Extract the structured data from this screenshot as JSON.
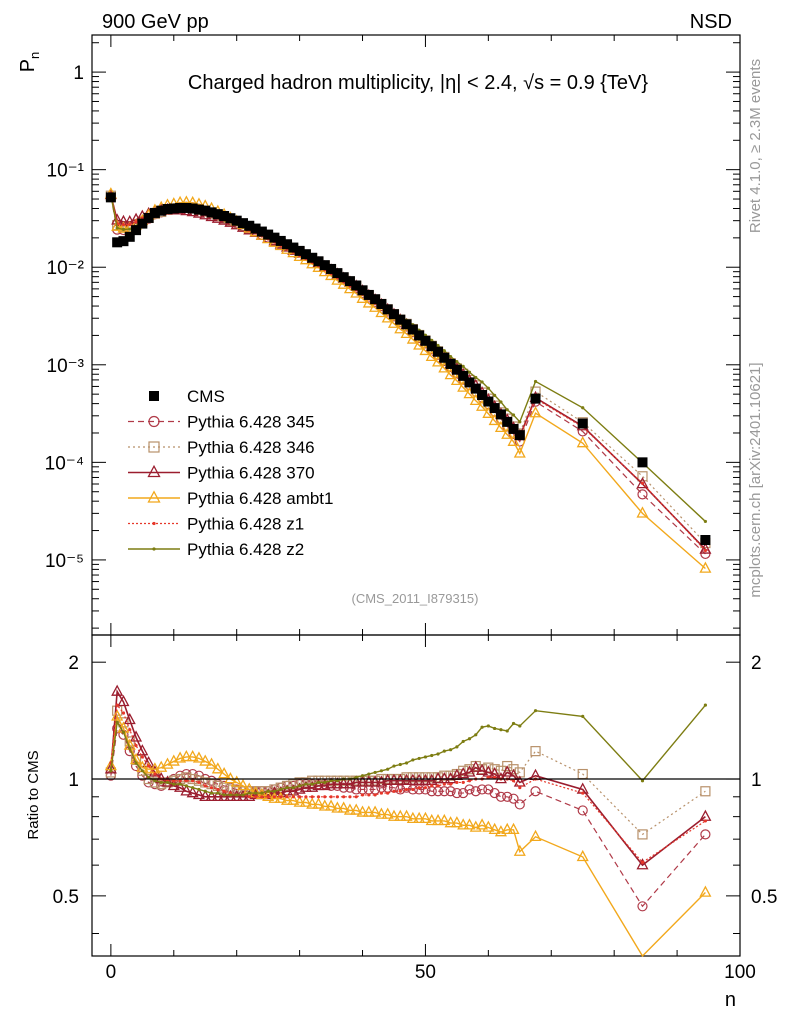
{
  "header": {
    "left": "900 GeV pp",
    "right": "NSD"
  },
  "side_labels": {
    "rivet": "Rivet 4.1.0, ≥ 2.3M events",
    "mcplots": "mcplots.cern.ch [arXiv:2401.10621]"
  },
  "chart_data": {
    "type": "line",
    "title": "Charged hadron multiplicity, |η| < 2.4, √s = 0.9 {TeV}",
    "analysis_tag": "(CMS_2011_I879315)",
    "xlabel": "n",
    "ylabel": "P_n",
    "ratio_ylabel": "Ratio to CMS",
    "xlim": [
      -3,
      100
    ],
    "ylim": [
      1.7e-06,
      2.4
    ],
    "ratio_ylim": [
      0.35,
      2.35
    ],
    "x_tick_labels": [
      "0",
      "50",
      "100"
    ],
    "y_tick_labels": [
      "1",
      "10⁻¹",
      "10⁻²",
      "10⁻³",
      "10⁻⁴",
      "10⁻⁵"
    ],
    "ratio_tick_labels": [
      "0.5",
      "1",
      "2"
    ],
    "legend_position": "bottom-left",
    "x": [
      0,
      1,
      2,
      3,
      4,
      5,
      6,
      7,
      8,
      9,
      10,
      11,
      12,
      13,
      14,
      15,
      16,
      17,
      18,
      19,
      20,
      21,
      22,
      23,
      24,
      25,
      26,
      27,
      28,
      29,
      30,
      31,
      32,
      33,
      34,
      35,
      36,
      37,
      38,
      39,
      40,
      41,
      42,
      43,
      44,
      45,
      46,
      47,
      48,
      49,
      50,
      51,
      52,
      53,
      54,
      55,
      56,
      57,
      58,
      59,
      60,
      61,
      62,
      63,
      64,
      65,
      67.5,
      75,
      84.5,
      94.5
    ],
    "data": {
      "name": "CMS",
      "values": [
        0.052,
        0.018,
        0.0185,
        0.0205,
        0.024,
        0.028,
        0.032,
        0.036,
        0.038,
        0.0395,
        0.04,
        0.0405,
        0.0405,
        0.04,
        0.039,
        0.038,
        0.0365,
        0.035,
        0.0335,
        0.0318,
        0.03,
        0.0283,
        0.0266,
        0.0249,
        0.0232,
        0.0216,
        0.0201,
        0.0186,
        0.0172,
        0.0159,
        0.0147,
        0.0136,
        0.0125,
        0.0115,
        0.0105,
        0.0096,
        0.0087,
        0.0079,
        0.0072,
        0.0065,
        0.0058,
        0.0052,
        0.0047,
        0.0042,
        0.0037,
        0.0033,
        0.0029,
        0.0026,
        0.0023,
        0.002,
        0.00176,
        0.00155,
        0.00136,
        0.00118,
        0.00102,
        0.00089,
        0.00077,
        0.00066,
        0.00057,
        0.00049,
        0.00042,
        0.00036,
        0.00031,
        0.00026,
        0.00022,
        0.00019,
        0.00045,
        0.00025,
        0.0001,
        1.6e-05
      ]
    },
    "series": [
      {
        "name": "Pythia 6.428 345",
        "color": "#b03a48",
        "ratio": [
          1.02,
          1.35,
          1.3,
          1.18,
          1.08,
          1.02,
          0.98,
          0.97,
          0.96,
          0.98,
          1.0,
          1.02,
          1.03,
          1.03,
          1.02,
          1.0,
          0.99,
          0.97,
          0.96,
          0.95,
          0.94,
          0.93,
          0.93,
          0.93,
          0.93,
          0.93,
          0.94,
          0.95,
          0.96,
          0.96,
          0.97,
          0.97,
          0.97,
          0.97,
          0.97,
          0.96,
          0.96,
          0.95,
          0.95,
          0.94,
          0.94,
          0.94,
          0.94,
          0.95,
          0.95,
          0.95,
          0.94,
          0.95,
          0.94,
          0.94,
          0.94,
          0.93,
          0.93,
          0.93,
          0.93,
          0.92,
          0.92,
          0.94,
          0.93,
          0.94,
          0.94,
          0.92,
          0.9,
          0.9,
          0.89,
          0.86,
          0.93,
          0.83,
          0.47,
          0.72
        ]
      },
      {
        "name": "Pythia 6.428 346",
        "color": "#b8916a",
        "ratio": [
          1.04,
          1.5,
          1.4,
          1.25,
          1.12,
          1.05,
          1.0,
          0.98,
          0.97,
          0.98,
          0.99,
          1.0,
          1.01,
          1.0,
          0.99,
          0.98,
          0.97,
          0.96,
          0.95,
          0.94,
          0.93,
          0.93,
          0.93,
          0.93,
          0.93,
          0.93,
          0.94,
          0.95,
          0.96,
          0.97,
          0.98,
          0.98,
          0.99,
          0.99,
          0.99,
          0.99,
          0.99,
          0.99,
          0.99,
          0.99,
          0.99,
          0.99,
          0.99,
          1.0,
          1.0,
          1.0,
          1.0,
          1.01,
          1.01,
          1.01,
          1.01,
          1.01,
          1.01,
          1.02,
          1.02,
          1.03,
          1.05,
          1.06,
          1.08,
          1.06,
          1.07,
          1.06,
          1.05,
          1.08,
          1.06,
          1.04,
          1.18,
          1.03,
          0.72,
          0.93
        ]
      },
      {
        "name": "Pythia 6.428 370",
        "color": "#9b1d2e",
        "ratio": [
          1.06,
          1.68,
          1.58,
          1.42,
          1.28,
          1.18,
          1.1,
          1.04,
          1.0,
          0.98,
          0.96,
          0.95,
          0.93,
          0.92,
          0.91,
          0.9,
          0.9,
          0.9,
          0.9,
          0.9,
          0.9,
          0.9,
          0.9,
          0.91,
          0.91,
          0.91,
          0.92,
          0.92,
          0.93,
          0.93,
          0.94,
          0.95,
          0.95,
          0.96,
          0.96,
          0.97,
          0.97,
          0.97,
          0.97,
          0.98,
          0.98,
          0.98,
          0.98,
          0.98,
          0.99,
          0.99,
          0.99,
          0.99,
          0.99,
          0.99,
          0.99,
          0.99,
          1.0,
          1.0,
          1.0,
          1.02,
          1.03,
          1.04,
          1.07,
          1.05,
          1.04,
          1.03,
          1.0,
          1.04,
          1.02,
          0.98,
          1.02,
          0.94,
          0.6,
          0.8
        ]
      },
      {
        "name": "Pythia 6.428 ambt1",
        "color": "#f2a81c",
        "ratio": [
          1.08,
          1.45,
          1.35,
          1.22,
          1.12,
          1.07,
          1.06,
          1.06,
          1.07,
          1.09,
          1.11,
          1.13,
          1.14,
          1.14,
          1.13,
          1.11,
          1.09,
          1.06,
          1.03,
          1.0,
          0.98,
          0.96,
          0.94,
          0.92,
          0.91,
          0.9,
          0.89,
          0.89,
          0.88,
          0.88,
          0.87,
          0.87,
          0.86,
          0.86,
          0.85,
          0.85,
          0.84,
          0.84,
          0.83,
          0.83,
          0.82,
          0.82,
          0.82,
          0.81,
          0.81,
          0.8,
          0.8,
          0.8,
          0.79,
          0.79,
          0.79,
          0.78,
          0.78,
          0.78,
          0.77,
          0.77,
          0.76,
          0.76,
          0.75,
          0.76,
          0.75,
          0.74,
          0.73,
          0.74,
          0.74,
          0.65,
          0.71,
          0.63,
          0.3,
          0.51
        ]
      },
      {
        "name": "Pythia 6.428 z1",
        "color": "#e6372a",
        "ratio": [
          1.1,
          1.55,
          1.48,
          1.34,
          1.22,
          1.14,
          1.08,
          1.03,
          1.0,
          0.99,
          0.99,
          0.99,
          0.99,
          0.99,
          0.98,
          0.96,
          0.95,
          0.94,
          0.93,
          0.92,
          0.91,
          0.91,
          0.9,
          0.9,
          0.9,
          0.9,
          0.9,
          0.9,
          0.9,
          0.9,
          0.9,
          0.9,
          0.9,
          0.9,
          0.9,
          0.9,
          0.9,
          0.9,
          0.9,
          0.9,
          0.91,
          0.91,
          0.91,
          0.92,
          0.92,
          0.93,
          0.93,
          0.94,
          0.94,
          0.95,
          0.95,
          0.96,
          0.96,
          0.97,
          0.97,
          0.98,
          0.98,
          0.99,
          1.0,
          1.0,
          1.01,
          1.01,
          1.0,
          1.0,
          0.99,
          0.95,
          1.0,
          0.92,
          0.61,
          0.78
        ]
      },
      {
        "name": "Pythia 6.428 z2",
        "color": "#7d7d12",
        "ratio": [
          1.05,
          1.4,
          1.32,
          1.2,
          1.1,
          1.05,
          1.01,
          0.99,
          0.98,
          0.98,
          0.97,
          0.97,
          0.96,
          0.95,
          0.94,
          0.93,
          0.92,
          0.92,
          0.91,
          0.91,
          0.91,
          0.91,
          0.92,
          0.92,
          0.92,
          0.93,
          0.93,
          0.94,
          0.95,
          0.95,
          0.96,
          0.97,
          0.97,
          0.98,
          0.98,
          0.99,
          0.99,
          1.0,
          1.0,
          1.01,
          1.02,
          1.03,
          1.04,
          1.05,
          1.06,
          1.08,
          1.09,
          1.1,
          1.12,
          1.13,
          1.14,
          1.15,
          1.16,
          1.18,
          1.19,
          1.21,
          1.25,
          1.27,
          1.3,
          1.36,
          1.37,
          1.35,
          1.34,
          1.33,
          1.39,
          1.37,
          1.5,
          1.45,
          0.99,
          1.55
        ]
      }
    ]
  }
}
